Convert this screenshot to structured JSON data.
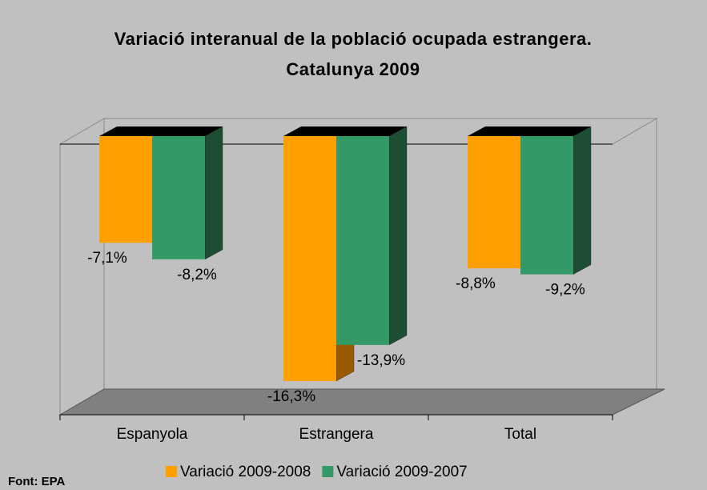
{
  "chart_data": {
    "type": "bar3d",
    "title": "Variació interanual de la població ocupada estrangera. Catalunya 2009",
    "categories": [
      "Espanyola",
      "Estrangera",
      "Total"
    ],
    "series": [
      {
        "name": "Variació 2009-2008",
        "color": "#ffa000",
        "values": [
          -7.1,
          -16.3,
          -8.8
        ],
        "value_labels": [
          "-7,1%",
          "-16,3%",
          "-8,8%"
        ]
      },
      {
        "name": "Variació 2009-2007",
        "color": "#339966",
        "values": [
          -8.2,
          -13.9,
          -9.2
        ],
        "value_labels": [
          "-8,2%",
          "-13,9%",
          "-9,2%"
        ]
      }
    ],
    "ylim": [
      -17,
      0
    ],
    "source": "Font: EPA"
  }
}
